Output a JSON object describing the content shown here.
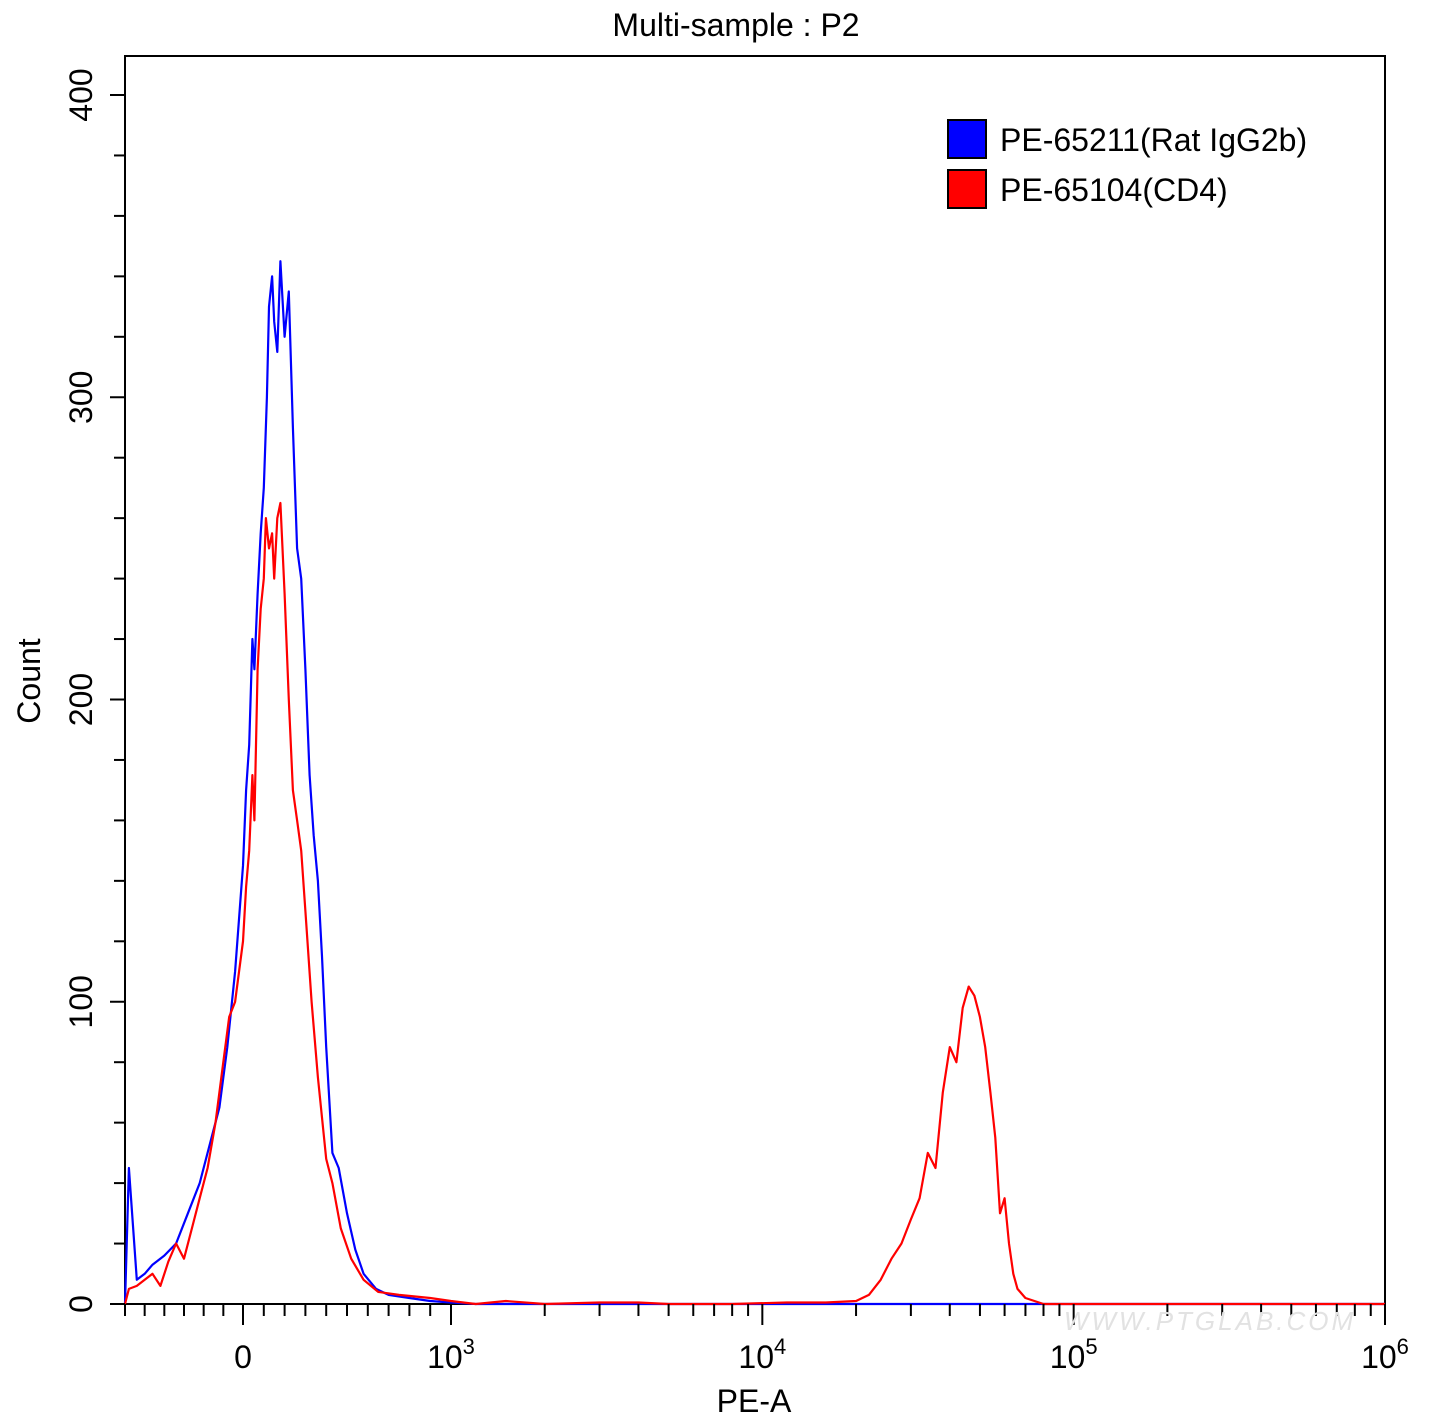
{
  "chart_data": {
    "type": "line",
    "title": "Multi-sample : P2",
    "xlabel": "PE-A",
    "ylabel": "Count",
    "x_scale": "biexponential",
    "xlim": [
      -300,
      1000000
    ],
    "ylim": [
      0,
      400
    ],
    "yticks": [
      0,
      100,
      200,
      300,
      400
    ],
    "xticks": [
      {
        "value": 0,
        "base": "0",
        "exp": ""
      },
      {
        "value": 1000,
        "base": "10",
        "exp": "3"
      },
      {
        "value": 10000,
        "base": "10",
        "exp": "4"
      },
      {
        "value": 100000,
        "base": "10",
        "exp": "5"
      },
      {
        "value": 1000000,
        "base": "10",
        "exp": "6"
      }
    ],
    "grid": false,
    "legend_position": "top-right",
    "watermark": "WWW.PTGLAB.COM",
    "series": [
      {
        "name": "PE-65211(Rat IgG2b)",
        "color": "#0000ff",
        "points": [
          [
            -300,
            0
          ],
          [
            -290,
            45
          ],
          [
            -270,
            8
          ],
          [
            -250,
            10
          ],
          [
            -230,
            13
          ],
          [
            -200,
            16
          ],
          [
            -170,
            20
          ],
          [
            -140,
            30
          ],
          [
            -110,
            40
          ],
          [
            -80,
            55
          ],
          [
            -60,
            65
          ],
          [
            -40,
            85
          ],
          [
            -20,
            110
          ],
          [
            0,
            145
          ],
          [
            15,
            170
          ],
          [
            30,
            185
          ],
          [
            45,
            220
          ],
          [
            55,
            210
          ],
          [
            70,
            235
          ],
          [
            85,
            255
          ],
          [
            100,
            270
          ],
          [
            115,
            300
          ],
          [
            125,
            330
          ],
          [
            140,
            340
          ],
          [
            150,
            325
          ],
          [
            165,
            315
          ],
          [
            180,
            345
          ],
          [
            200,
            320
          ],
          [
            220,
            335
          ],
          [
            240,
            290
          ],
          [
            260,
            250
          ],
          [
            280,
            240
          ],
          [
            300,
            210
          ],
          [
            320,
            175
          ],
          [
            340,
            155
          ],
          [
            360,
            140
          ],
          [
            380,
            115
          ],
          [
            400,
            85
          ],
          [
            430,
            50
          ],
          [
            460,
            45
          ],
          [
            500,
            30
          ],
          [
            540,
            18
          ],
          [
            580,
            10
          ],
          [
            640,
            5
          ],
          [
            700,
            3
          ],
          [
            800,
            2
          ],
          [
            900,
            1
          ],
          [
            1000,
            0.5
          ],
          [
            1200,
            0
          ],
          [
            1400,
            0
          ],
          [
            2000,
            0
          ],
          [
            5000,
            0
          ],
          [
            10000,
            0
          ],
          [
            100000,
            0
          ],
          [
            1000000,
            0
          ]
        ]
      },
      {
        "name": "PE-65104(CD4)",
        "color": "#ff0000",
        "points": [
          [
            -300,
            0
          ],
          [
            -290,
            5
          ],
          [
            -270,
            6
          ],
          [
            -250,
            8
          ],
          [
            -230,
            10
          ],
          [
            -210,
            6
          ],
          [
            -190,
            14
          ],
          [
            -170,
            20
          ],
          [
            -150,
            15
          ],
          [
            -130,
            25
          ],
          [
            -110,
            35
          ],
          [
            -90,
            45
          ],
          [
            -70,
            60
          ],
          [
            -50,
            80
          ],
          [
            -35,
            95
          ],
          [
            -20,
            100
          ],
          [
            0,
            120
          ],
          [
            15,
            138
          ],
          [
            30,
            150
          ],
          [
            45,
            175
          ],
          [
            55,
            160
          ],
          [
            70,
            210
          ],
          [
            85,
            230
          ],
          [
            100,
            240
          ],
          [
            110,
            260
          ],
          [
            125,
            250
          ],
          [
            140,
            255
          ],
          [
            150,
            240
          ],
          [
            165,
            260
          ],
          [
            180,
            265
          ],
          [
            200,
            235
          ],
          [
            220,
            200
          ],
          [
            240,
            170
          ],
          [
            260,
            160
          ],
          [
            280,
            150
          ],
          [
            300,
            130
          ],
          [
            330,
            100
          ],
          [
            360,
            75
          ],
          [
            400,
            48
          ],
          [
            430,
            40
          ],
          [
            470,
            25
          ],
          [
            520,
            15
          ],
          [
            580,
            8
          ],
          [
            650,
            4
          ],
          [
            750,
            3
          ],
          [
            900,
            2
          ],
          [
            1000,
            1
          ],
          [
            1200,
            0
          ],
          [
            1500,
            1
          ],
          [
            2000,
            0
          ],
          [
            3000,
            0.5
          ],
          [
            4000,
            0.5
          ],
          [
            5000,
            0
          ],
          [
            8000,
            0
          ],
          [
            12000,
            0.5
          ],
          [
            16000,
            0.5
          ],
          [
            20000,
            1
          ],
          [
            22000,
            3
          ],
          [
            24000,
            8
          ],
          [
            26000,
            15
          ],
          [
            28000,
            20
          ],
          [
            30000,
            28
          ],
          [
            32000,
            35
          ],
          [
            34000,
            50
          ],
          [
            36000,
            45
          ],
          [
            38000,
            70
          ],
          [
            40000,
            85
          ],
          [
            42000,
            80
          ],
          [
            44000,
            98
          ],
          [
            46000,
            105
          ],
          [
            48000,
            102
          ],
          [
            50000,
            95
          ],
          [
            52000,
            85
          ],
          [
            54000,
            70
          ],
          [
            56000,
            55
          ],
          [
            58000,
            30
          ],
          [
            60000,
            35
          ],
          [
            62000,
            20
          ],
          [
            64000,
            10
          ],
          [
            66000,
            5
          ],
          [
            70000,
            2
          ],
          [
            80000,
            0
          ],
          [
            100000,
            0
          ],
          [
            1000000,
            0
          ]
        ]
      }
    ]
  }
}
